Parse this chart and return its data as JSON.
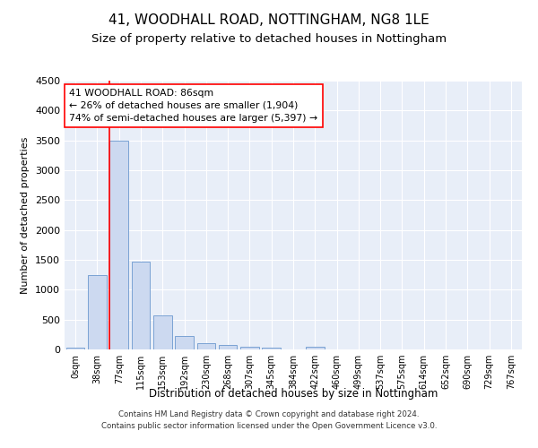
{
  "title1": "41, WOODHALL ROAD, NOTTINGHAM, NG8 1LE",
  "title2": "Size of property relative to detached houses in Nottingham",
  "xlabel": "Distribution of detached houses by size in Nottingham",
  "ylabel": "Number of detached properties",
  "categories": [
    "0sqm",
    "38sqm",
    "77sqm",
    "115sqm",
    "153sqm",
    "192sqm",
    "230sqm",
    "268sqm",
    "307sqm",
    "345sqm",
    "384sqm",
    "422sqm",
    "460sqm",
    "499sqm",
    "537sqm",
    "575sqm",
    "614sqm",
    "652sqm",
    "690sqm",
    "729sqm",
    "767sqm"
  ],
  "bar_values": [
    30,
    1250,
    3500,
    1470,
    570,
    220,
    110,
    75,
    50,
    25,
    0,
    40,
    0,
    0,
    0,
    0,
    0,
    0,
    0,
    0,
    0
  ],
  "bar_color": "#ccd9f0",
  "bar_edge_color": "#7ba3d4",
  "red_line_index": 2,
  "annotation_title": "41 WOODHALL ROAD: 86sqm",
  "annotation_line1": "← 26% of detached houses are smaller (1,904)",
  "annotation_line2": "74% of semi-detached houses are larger (5,397) →",
  "ylim": [
    0,
    4500
  ],
  "yticks": [
    0,
    500,
    1000,
    1500,
    2000,
    2500,
    3000,
    3500,
    4000,
    4500
  ],
  "footer_line1": "Contains HM Land Registry data © Crown copyright and database right 2024.",
  "footer_line2": "Contains public sector information licensed under the Open Government Licence v3.0.",
  "bg_color": "#ffffff",
  "plot_bg_color": "#e8eef8",
  "grid_color": "#ffffff",
  "title1_fontsize": 11,
  "title2_fontsize": 9.5
}
